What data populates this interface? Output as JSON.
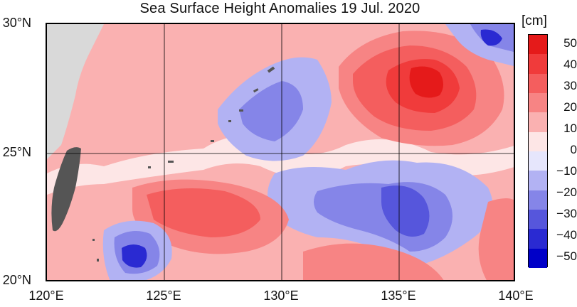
{
  "title": "Sea Surface Height Anomalies  19 Jul. 2020",
  "colorbar": {
    "unit": "[cm]",
    "ticks": [
      "50",
      "40",
      "30",
      "20",
      "10",
      "0",
      "−10",
      "−20",
      "−30",
      "−40",
      "−50"
    ],
    "colors": [
      "#e51a1a",
      "#f03b3b",
      "#f45e5e",
      "#f78484",
      "#fab1b1",
      "#fde6e6",
      "#e6e6fc",
      "#b2b2f3",
      "#8585e8",
      "#5656dc",
      "#2a2ad2",
      "#0000c8"
    ]
  },
  "map": {
    "lat_labels": [
      "30°N",
      "25°N",
      "20°N"
    ],
    "lon_labels": [
      "120°E",
      "125°E",
      "130°E",
      "135°E",
      "140°E"
    ],
    "land_color": "#d9d9d9",
    "taiwan_color": "#555555",
    "grid_color": "#000000"
  }
}
